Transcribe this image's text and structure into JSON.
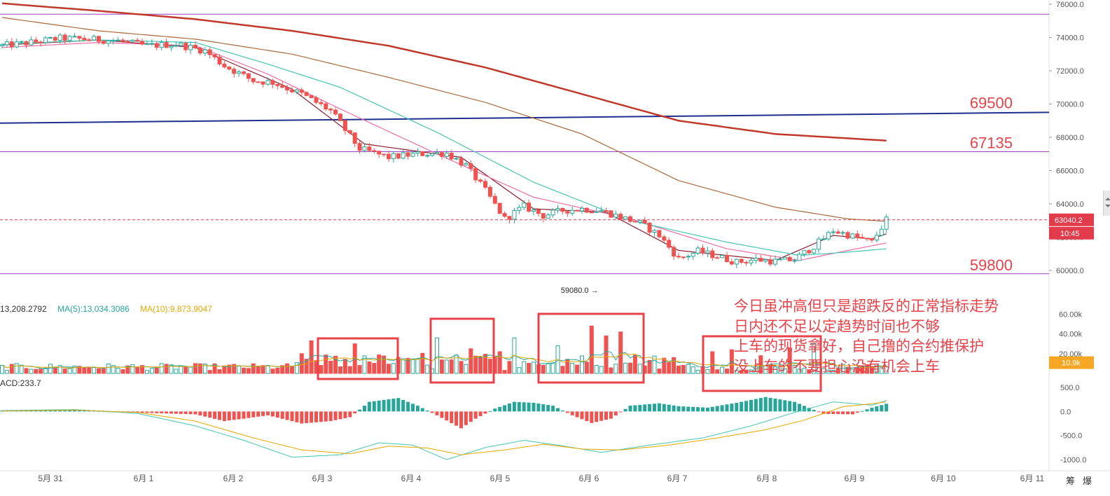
{
  "chart_data": {
    "type": "candlestick",
    "price_axis": {
      "ticks": [
        76000,
        74000,
        72000,
        70000,
        68000,
        66000,
        64000,
        62000,
        60000
      ],
      "tick_labels": [
        "76000.0",
        "74000.0",
        "72000.0",
        "70000.0",
        "68000.0",
        "66000.0",
        "64000.0",
        "62000.0",
        "60000.0"
      ],
      "range": [
        59400,
        76100
      ]
    },
    "time_axis": {
      "labels": [
        "5月 31",
        "6月 1",
        "6月 2",
        "6月 3",
        "6月 4",
        "6月 5",
        "6月 6",
        "6月 7",
        "6月 8",
        "6月 9",
        "6月 10",
        "6月 11"
      ]
    },
    "horizontal_levels": [
      {
        "value": 75400,
        "color": "#9b3fbf",
        "label": ""
      },
      {
        "value": 67135,
        "color": "#9b3fbf",
        "label": "67135"
      },
      {
        "value": 59800,
        "color": "#9b3fbf",
        "label": "59800"
      }
    ],
    "trendline": {
      "from_date": "5月 31",
      "from_value": 68850,
      "to_date": "6月 11",
      "to_value": 69500,
      "label": "69500",
      "color": "#1f2f8f"
    },
    "current_price": {
      "value": 63040.2,
      "label": "63040.2",
      "countdown": "10:45",
      "color": "#e23b4b"
    },
    "low_marker": {
      "value": 59080.0,
      "label": "59080.0",
      "date": "6月 6"
    },
    "candles": {
      "count": 184,
      "start_price": 73500,
      "path": [
        [
          0,
          73500
        ],
        [
          6,
          73700
        ],
        [
          12,
          73950
        ],
        [
          18,
          73900
        ],
        [
          24,
          73800
        ],
        [
          30,
          73500
        ],
        [
          36,
          73600
        ],
        [
          42,
          73200
        ],
        [
          46,
          72300
        ],
        [
          52,
          71400
        ],
        [
          56,
          71300
        ],
        [
          62,
          70600
        ],
        [
          68,
          69600
        ],
        [
          74,
          67300
        ],
        [
          80,
          66800
        ],
        [
          86,
          67000
        ],
        [
          92,
          67050
        ],
        [
          96,
          66300
        ],
        [
          100,
          64800
        ],
        [
          104,
          63100
        ],
        [
          108,
          63850
        ],
        [
          112,
          63300
        ],
        [
          116,
          63600
        ],
        [
          120,
          63700
        ],
        [
          124,
          63600
        ],
        [
          128,
          63200
        ],
        [
          132,
          62850
        ],
        [
          136,
          62100
        ],
        [
          140,
          60700
        ],
        [
          144,
          61150
        ],
        [
          148,
          60850
        ],
        [
          152,
          60500
        ],
        [
          156,
          60650
        ],
        [
          160,
          60550
        ],
        [
          164,
          60650
        ],
        [
          168,
          61450
        ],
        [
          172,
          62400
        ],
        [
          176,
          62050
        ],
        [
          180,
          61700
        ],
        [
          183,
          63040
        ]
      ]
    },
    "moving_averages": [
      {
        "name": "MA (red)",
        "color": "#8b1c2c",
        "values": [
          [
            0,
            73550
          ],
          [
            20,
            73850
          ],
          [
            40,
            73400
          ],
          [
            60,
            70900
          ],
          [
            75,
            67600
          ],
          [
            95,
            66800
          ],
          [
            110,
            63700
          ],
          [
            125,
            63500
          ],
          [
            140,
            61200
          ],
          [
            160,
            60600
          ],
          [
            172,
            62100
          ],
          [
            180,
            61900
          ],
          [
            183,
            62200
          ]
        ]
      },
      {
        "name": "MA (pink)",
        "color": "#f06ea3",
        "values": [
          [
            0,
            73400
          ],
          [
            20,
            73700
          ],
          [
            40,
            73500
          ],
          [
            55,
            71800
          ],
          [
            70,
            69700
          ],
          [
            90,
            67000
          ],
          [
            110,
            64400
          ],
          [
            130,
            63100
          ],
          [
            150,
            61300
          ],
          [
            165,
            60600
          ],
          [
            175,
            61200
          ],
          [
            183,
            61650
          ]
        ]
      },
      {
        "name": "MA (teal)",
        "color": "#45c5b5",
        "values": [
          [
            0,
            73600
          ],
          [
            20,
            73850
          ],
          [
            40,
            73700
          ],
          [
            55,
            72400
          ],
          [
            70,
            71000
          ],
          [
            90,
            68300
          ],
          [
            110,
            65300
          ],
          [
            130,
            63000
          ],
          [
            150,
            61700
          ],
          [
            165,
            60900
          ],
          [
            175,
            61100
          ],
          [
            183,
            61300
          ]
        ]
      },
      {
        "name": "MA (brown)",
        "color": "#a86a3a",
        "values": [
          [
            0,
            75200
          ],
          [
            20,
            74400
          ],
          [
            40,
            73900
          ],
          [
            60,
            73000
          ],
          [
            80,
            71600
          ],
          [
            100,
            70100
          ],
          [
            120,
            68200
          ],
          [
            140,
            65400
          ],
          [
            160,
            63800
          ],
          [
            175,
            63100
          ],
          [
            183,
            62950
          ]
        ]
      },
      {
        "name": "MA (dark red)",
        "color": "#c0392b",
        "values": [
          [
            0,
            76050
          ],
          [
            20,
            75600
          ],
          [
            40,
            75100
          ],
          [
            60,
            74400
          ],
          [
            80,
            73500
          ],
          [
            100,
            72200
          ],
          [
            120,
            70600
          ],
          [
            140,
            69000
          ],
          [
            160,
            68200
          ],
          [
            183,
            67800
          ]
        ]
      }
    ],
    "volume": {
      "legend": [
        {
          "text": "13,208.2792",
          "color": "#333333"
        },
        {
          "text": "MA(5):13,034.3086",
          "color": "#26a69a"
        },
        {
          "text": "MA(10):9,873.9047",
          "color": "#e6a700"
        }
      ],
      "ticks": [
        60000,
        40000,
        20000
      ],
      "tick_labels": [
        "60.00k",
        "40.00k",
        "20.00k"
      ],
      "current_label": "10.9k",
      "range": [
        0,
        66000
      ]
    },
    "macd": {
      "label": "ACD:233.7",
      "ticks": [
        500,
        0,
        -500,
        -1000
      ],
      "tick_labels": [
        "500.0",
        "0.0",
        "-500.0",
        "-1000.0"
      ],
      "range": [
        -1100,
        1050
      ]
    }
  },
  "annotation": {
    "lines": [
      "今日虽冲高但只是超跌反的正常指标走势",
      "日内还不足以定趋势时间也不够",
      "上车的现货拿好，自己撸的合约推保护",
      "没上车的不要担心没有机会上车"
    ]
  },
  "corner_buttons": {
    "left": "筹",
    "right": "爆"
  },
  "colors": {
    "up": "#26a69a",
    "down": "#ef5350",
    "annotation": "#e8424a",
    "level": "#9b3fbf",
    "trend": "#1f2f8f"
  }
}
